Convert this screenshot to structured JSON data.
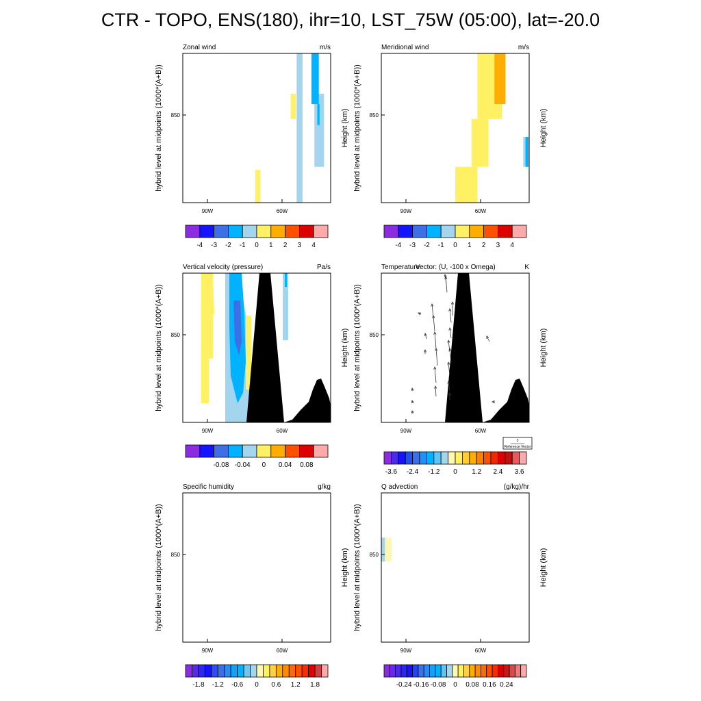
{
  "title": "CTR - TOPO, ENS(180), ihr=10, LST_75W (05:00), lat=-20.0",
  "chart_data": [
    {
      "type": "heatmap",
      "title": "Zonal wind",
      "units": "m/s",
      "ylabel": "hybrid level at midpoints (1000*(A+B))",
      "right_label": "",
      "xlim": [
        100,
        80
      ],
      "yticks": [
        "850"
      ],
      "xticks": [
        "90W",
        "60W"
      ],
      "x_values": [
        90,
        60
      ],
      "colorbar": {
        "colors": [
          "#8b2be2",
          "#1414ff",
          "#3d6fe6",
          "#00b2ff",
          "#a3d6ee",
          "#fff064",
          "#ffae00",
          "#ff5000",
          "#dc0000",
          "#ffaaaa"
        ],
        "labels": [
          "-4",
          "-3",
          "-2",
          "-1",
          "0",
          "1",
          "2",
          "3",
          "4"
        ]
      },
      "regions": [
        {
          "color": "#fff064",
          "x": [
            89.5,
            90.2
          ],
          "y": [
            0.78,
            1.0
          ]
        },
        {
          "color": "#fff064",
          "x": [
            84.7,
            85.4
          ],
          "y": [
            0.27,
            0.44
          ]
        },
        {
          "color": "#a3d6ee",
          "x": [
            83.8,
            84.6
          ],
          "y": [
            0.0,
            1.0
          ]
        },
        {
          "color": "#a3d6ee",
          "x": [
            80.9,
            82.2
          ],
          "y": [
            0.27,
            0.76
          ]
        },
        {
          "color": "#00b2ff",
          "x": [
            81.6,
            82.6
          ],
          "y": [
            0.0,
            0.34
          ]
        },
        {
          "color": "#00b2ff",
          "x": [
            81.5,
            81.8
          ],
          "y": [
            0.34,
            0.48
          ]
        }
      ]
    },
    {
      "type": "heatmap",
      "title": "Meridional wind",
      "units": "m/s",
      "ylabel": "hybrid level at midpoints (1000*(A+B))",
      "left_outer_label": "Height (km)",
      "right_label": "Height (km)",
      "yticks": [
        "850"
      ],
      "xticks": [
        "90W",
        "60W"
      ],
      "colorbar": {
        "colors": [
          "#8b2be2",
          "#1414ff",
          "#3d6fe6",
          "#00b2ff",
          "#a3d6ee",
          "#fff064",
          "#ffae00",
          "#ff5000",
          "#dc0000",
          "#ffaaaa"
        ],
        "labels": [
          "-4",
          "-3",
          "-2",
          "-1",
          "0",
          "1",
          "2",
          "3",
          "4"
        ]
      },
      "regions": [
        {
          "color": "#fff064",
          "x": [
            90.0,
            87.0
          ],
          "y": [
            0.76,
            1.0
          ]
        },
        {
          "color": "#fff064",
          "x": [
            87.8,
            85.5
          ],
          "y": [
            0.44,
            0.76
          ]
        },
        {
          "color": "#fff064",
          "x": [
            87.0,
            83.7
          ],
          "y": [
            0.0,
            0.44
          ]
        },
        {
          "color": "#ffae00",
          "x": [
            84.7,
            83.2
          ],
          "y": [
            0.0,
            0.34
          ]
        },
        {
          "color": "#a3d6ee",
          "x": [
            80.8,
            80.1
          ],
          "y": [
            0.56,
            0.76
          ]
        },
        {
          "color": "#00b2ff",
          "x": [
            80.5,
            80.1
          ],
          "y": [
            0.56,
            0.76
          ]
        }
      ]
    },
    {
      "type": "heatmap",
      "title": "Vertical velocity (pressure)",
      "units": "Pa/s",
      "ylabel": "hybrid level at midpoints (1000*(A+B))",
      "yticks": [
        "850"
      ],
      "xticks": [
        "90W",
        "60W"
      ],
      "colorbar": {
        "colors": [
          "#8b2be2",
          "#1414ff",
          "#3d6fe6",
          "#00b2ff",
          "#a3d6ee",
          "#fff064",
          "#ffae00",
          "#ff5000",
          "#dc0000",
          "#ffaaaa"
        ],
        "labels": [
          "-0.08",
          "-0.04",
          "0",
          "0.04",
          "0.08"
        ]
      },
      "topography": true
    },
    {
      "type": "heatmap",
      "title": "Temperature",
      "vector_title": "Vector: (U, -100 x Omega)",
      "units": "K",
      "ylabel": "hybrid level at midpoints (1000*(A+B))",
      "left_outer_label": "Height (km)",
      "right_label": "Height (km)",
      "yticks": [
        "850"
      ],
      "xticks": [
        "90W",
        "60W"
      ],
      "reference_vector": {
        "value": "3",
        "label": "Reference Vector"
      },
      "colorbar": {
        "colors": [
          "#8b2be2",
          "#4b2be8",
          "#1414ff",
          "#2050f2",
          "#3d6fe6",
          "#1e92f6",
          "#00b2ff",
          "#5cc4f6",
          "#a3d6ee",
          "#fff8b0",
          "#fff064",
          "#ffcf32",
          "#ffae00",
          "#ff7f00",
          "#ff5000",
          "#ee2800",
          "#dc0000",
          "#c01010",
          "#ee5858",
          "#ffaaaa"
        ],
        "labels": [
          "-3.6",
          "-2.4",
          "-1.2",
          "0",
          "1.2",
          "2.4",
          "3.6"
        ]
      },
      "topography": true
    },
    {
      "type": "heatmap",
      "title": "Specific humidity",
      "units": "g/kg",
      "ylabel": "hybrid level at midpoints (1000*(A+B))",
      "yticks": [
        "850"
      ],
      "xticks": [
        "90W",
        "60W"
      ],
      "colorbar": {
        "colors": [
          "#8b2be2",
          "#5a28e6",
          "#2d28ee",
          "#1414ff",
          "#2c4ef4",
          "#3d6fe6",
          "#2a8cf0",
          "#14a2f8",
          "#00b2ff",
          "#6ac8f2",
          "#a3d6ee",
          "#fff8b0",
          "#fff064",
          "#ffd040",
          "#ffae00",
          "#ff8c00",
          "#ff6a00",
          "#ff5000",
          "#f03000",
          "#dc0000",
          "#d04040",
          "#ffaaaa"
        ],
        "labels": [
          "-1.8",
          "-1.2",
          "-0.6",
          "0",
          "0.6",
          "1.2",
          "1.8"
        ]
      }
    },
    {
      "type": "heatmap",
      "title": "Q advection",
      "units": "(g/kg)/hr",
      "ylabel": "hybrid level at midpoints (1000*(A+B))",
      "left_outer_label": "Height (km)",
      "right_label": "Height (km)",
      "yticks": [
        "850"
      ],
      "xticks": [
        "90W",
        "60W"
      ],
      "colorbar": {
        "colors": [
          "#8b2be2",
          "#6a2ae4",
          "#4b2be8",
          "#2d28ee",
          "#1414ff",
          "#2244f4",
          "#3d6fe6",
          "#2a8cf0",
          "#14a2f8",
          "#00b2ff",
          "#5cc4f6",
          "#a3d6ee",
          "#fff8b0",
          "#fff064",
          "#ffd040",
          "#ffae00",
          "#ff8c00",
          "#ff6a00",
          "#ff5000",
          "#f03000",
          "#dc0000",
          "#c81818",
          "#d84848",
          "#ee7a7a",
          "#ffaaaa"
        ],
        "labels": [
          "-0.24",
          "-0.16",
          "-0.08",
          "0",
          "0.08",
          "0.16",
          "0.24"
        ]
      },
      "regions": [
        {
          "color": "#a3d6ee",
          "x": [
            100,
            99.5
          ],
          "y": [
            0.3,
            0.46
          ]
        },
        {
          "color": "#fff8b0",
          "x": [
            99.5,
            98.6
          ],
          "y": [
            0.3,
            0.46
          ]
        }
      ]
    }
  ]
}
